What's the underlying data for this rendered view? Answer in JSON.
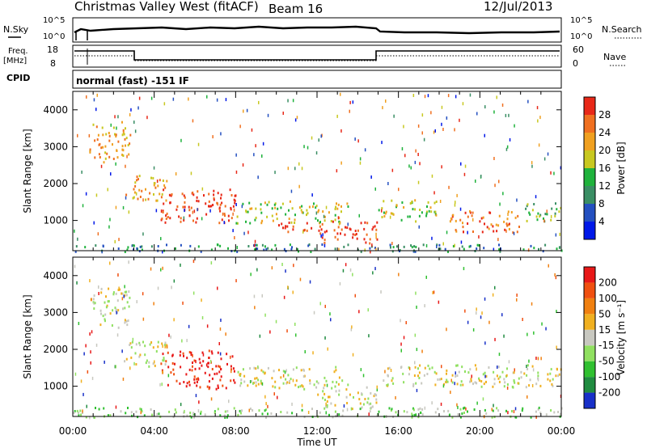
{
  "header": {
    "station": "Christmas Valley West (fitACF)",
    "beam": "Beam 16",
    "date": "12/Jul/2013"
  },
  "noise_panel": {
    "left_label": "N.Sky",
    "right_label": "N.Search",
    "left_ticks": [
      "10^5",
      "10^0"
    ],
    "right_ticks": [
      "10^5",
      "10^0"
    ]
  },
  "freq_panel": {
    "left_label_line1": "Freq.",
    "left_label_line2": "[MHz]",
    "left_ticks": [
      "18",
      "8"
    ],
    "right_label": "Nave",
    "right_ticks": [
      "60",
      "0"
    ]
  },
  "cpid": {
    "label": "CPID",
    "value": "normal (fast) -151 IF"
  },
  "chart_data": [
    {
      "type": "heatmap",
      "name": "power",
      "ylabel": "Slant Range [km]",
      "ylim": [
        180,
        4500
      ],
      "yticks": [
        "4000",
        "3000",
        "2000",
        "1000"
      ],
      "xlim": [
        "00:00",
        "24:00"
      ],
      "colorbar": {
        "label": "Power [dB]",
        "ticks": [
          "28",
          "24",
          "20",
          "16",
          "12",
          "8",
          "4"
        ],
        "colors": [
          "#0018e8",
          "#2450c0",
          "#3a8e64",
          "#1fb23c",
          "#c8c820",
          "#f0a020",
          "#f07020",
          "#e82818"
        ]
      },
      "features": [
        {
          "t0": 0.8,
          "t1": 2.8,
          "r0": 2600,
          "r1": 3700,
          "level": 5
        },
        {
          "t0": 2.5,
          "t1": 4.6,
          "r0": 1550,
          "r1": 2250,
          "level": 5
        },
        {
          "t0": 4.3,
          "t1": 8.0,
          "r0": 950,
          "r1": 1900,
          "level": 7
        },
        {
          "t0": 8.0,
          "t1": 13.5,
          "r0": 950,
          "r1": 1550,
          "level": 4
        },
        {
          "t0": 10.0,
          "t1": 12.0,
          "r0": 700,
          "r1": 1000,
          "level": 7
        },
        {
          "t0": 12.0,
          "t1": 15.0,
          "r0": 400,
          "r1": 1000,
          "level": 7
        },
        {
          "t0": 15.0,
          "t1": 18.0,
          "r0": 1000,
          "r1": 1600,
          "level": 4
        },
        {
          "t0": 18.5,
          "t1": 22.0,
          "r0": 700,
          "r1": 1300,
          "level": 6
        },
        {
          "t0": 22.0,
          "t1": 24.0,
          "r0": 1000,
          "r1": 1500,
          "level": 3
        },
        {
          "t0": 0.0,
          "t1": 24.0,
          "r0": 180,
          "r1": 380,
          "level": 2
        }
      ]
    },
    {
      "type": "heatmap",
      "name": "velocity",
      "ylabel": "Slant Range [km]",
      "ylim": [
        180,
        4500
      ],
      "yticks": [
        "4000",
        "3000",
        "2000",
        "1000"
      ],
      "xlabel": "Time UT",
      "xticks": [
        "00:00",
        "04:00",
        "08:00",
        "12:00",
        "16:00",
        "20:00",
        "00:00"
      ],
      "xlim": [
        "00:00",
        "24:00"
      ],
      "colorbar": {
        "label": "Velocity [m s⁻¹]",
        "ticks": [
          "200",
          "100",
          "50",
          "15",
          "-15",
          "-50",
          "-100",
          "-200"
        ],
        "colors": [
          "#1830c8",
          "#208c40",
          "#30c030",
          "#90e060",
          "#c8c8c0",
          "#f0b020",
          "#f08010",
          "#f05010",
          "#e81818"
        ]
      },
      "features": [
        {
          "t0": 0.8,
          "t1": 2.8,
          "r0": 2600,
          "r1": 3700,
          "level": 4
        },
        {
          "t0": 2.5,
          "t1": 4.6,
          "r0": 1550,
          "r1": 2250,
          "level": 4
        },
        {
          "t0": 4.3,
          "t1": 8.0,
          "r0": 950,
          "r1": 2000,
          "level": 8
        },
        {
          "t0": 8.0,
          "t1": 13.5,
          "r0": 950,
          "r1": 1550,
          "level": 4
        },
        {
          "t0": 12.0,
          "t1": 15.0,
          "r0": 400,
          "r1": 1000,
          "level": 4
        },
        {
          "t0": 15.0,
          "t1": 24.0,
          "r0": 1000,
          "r1": 1600,
          "level": 4
        },
        {
          "t0": 0.0,
          "t1": 24.0,
          "r0": 180,
          "r1": 450,
          "level": 3
        }
      ]
    }
  ]
}
